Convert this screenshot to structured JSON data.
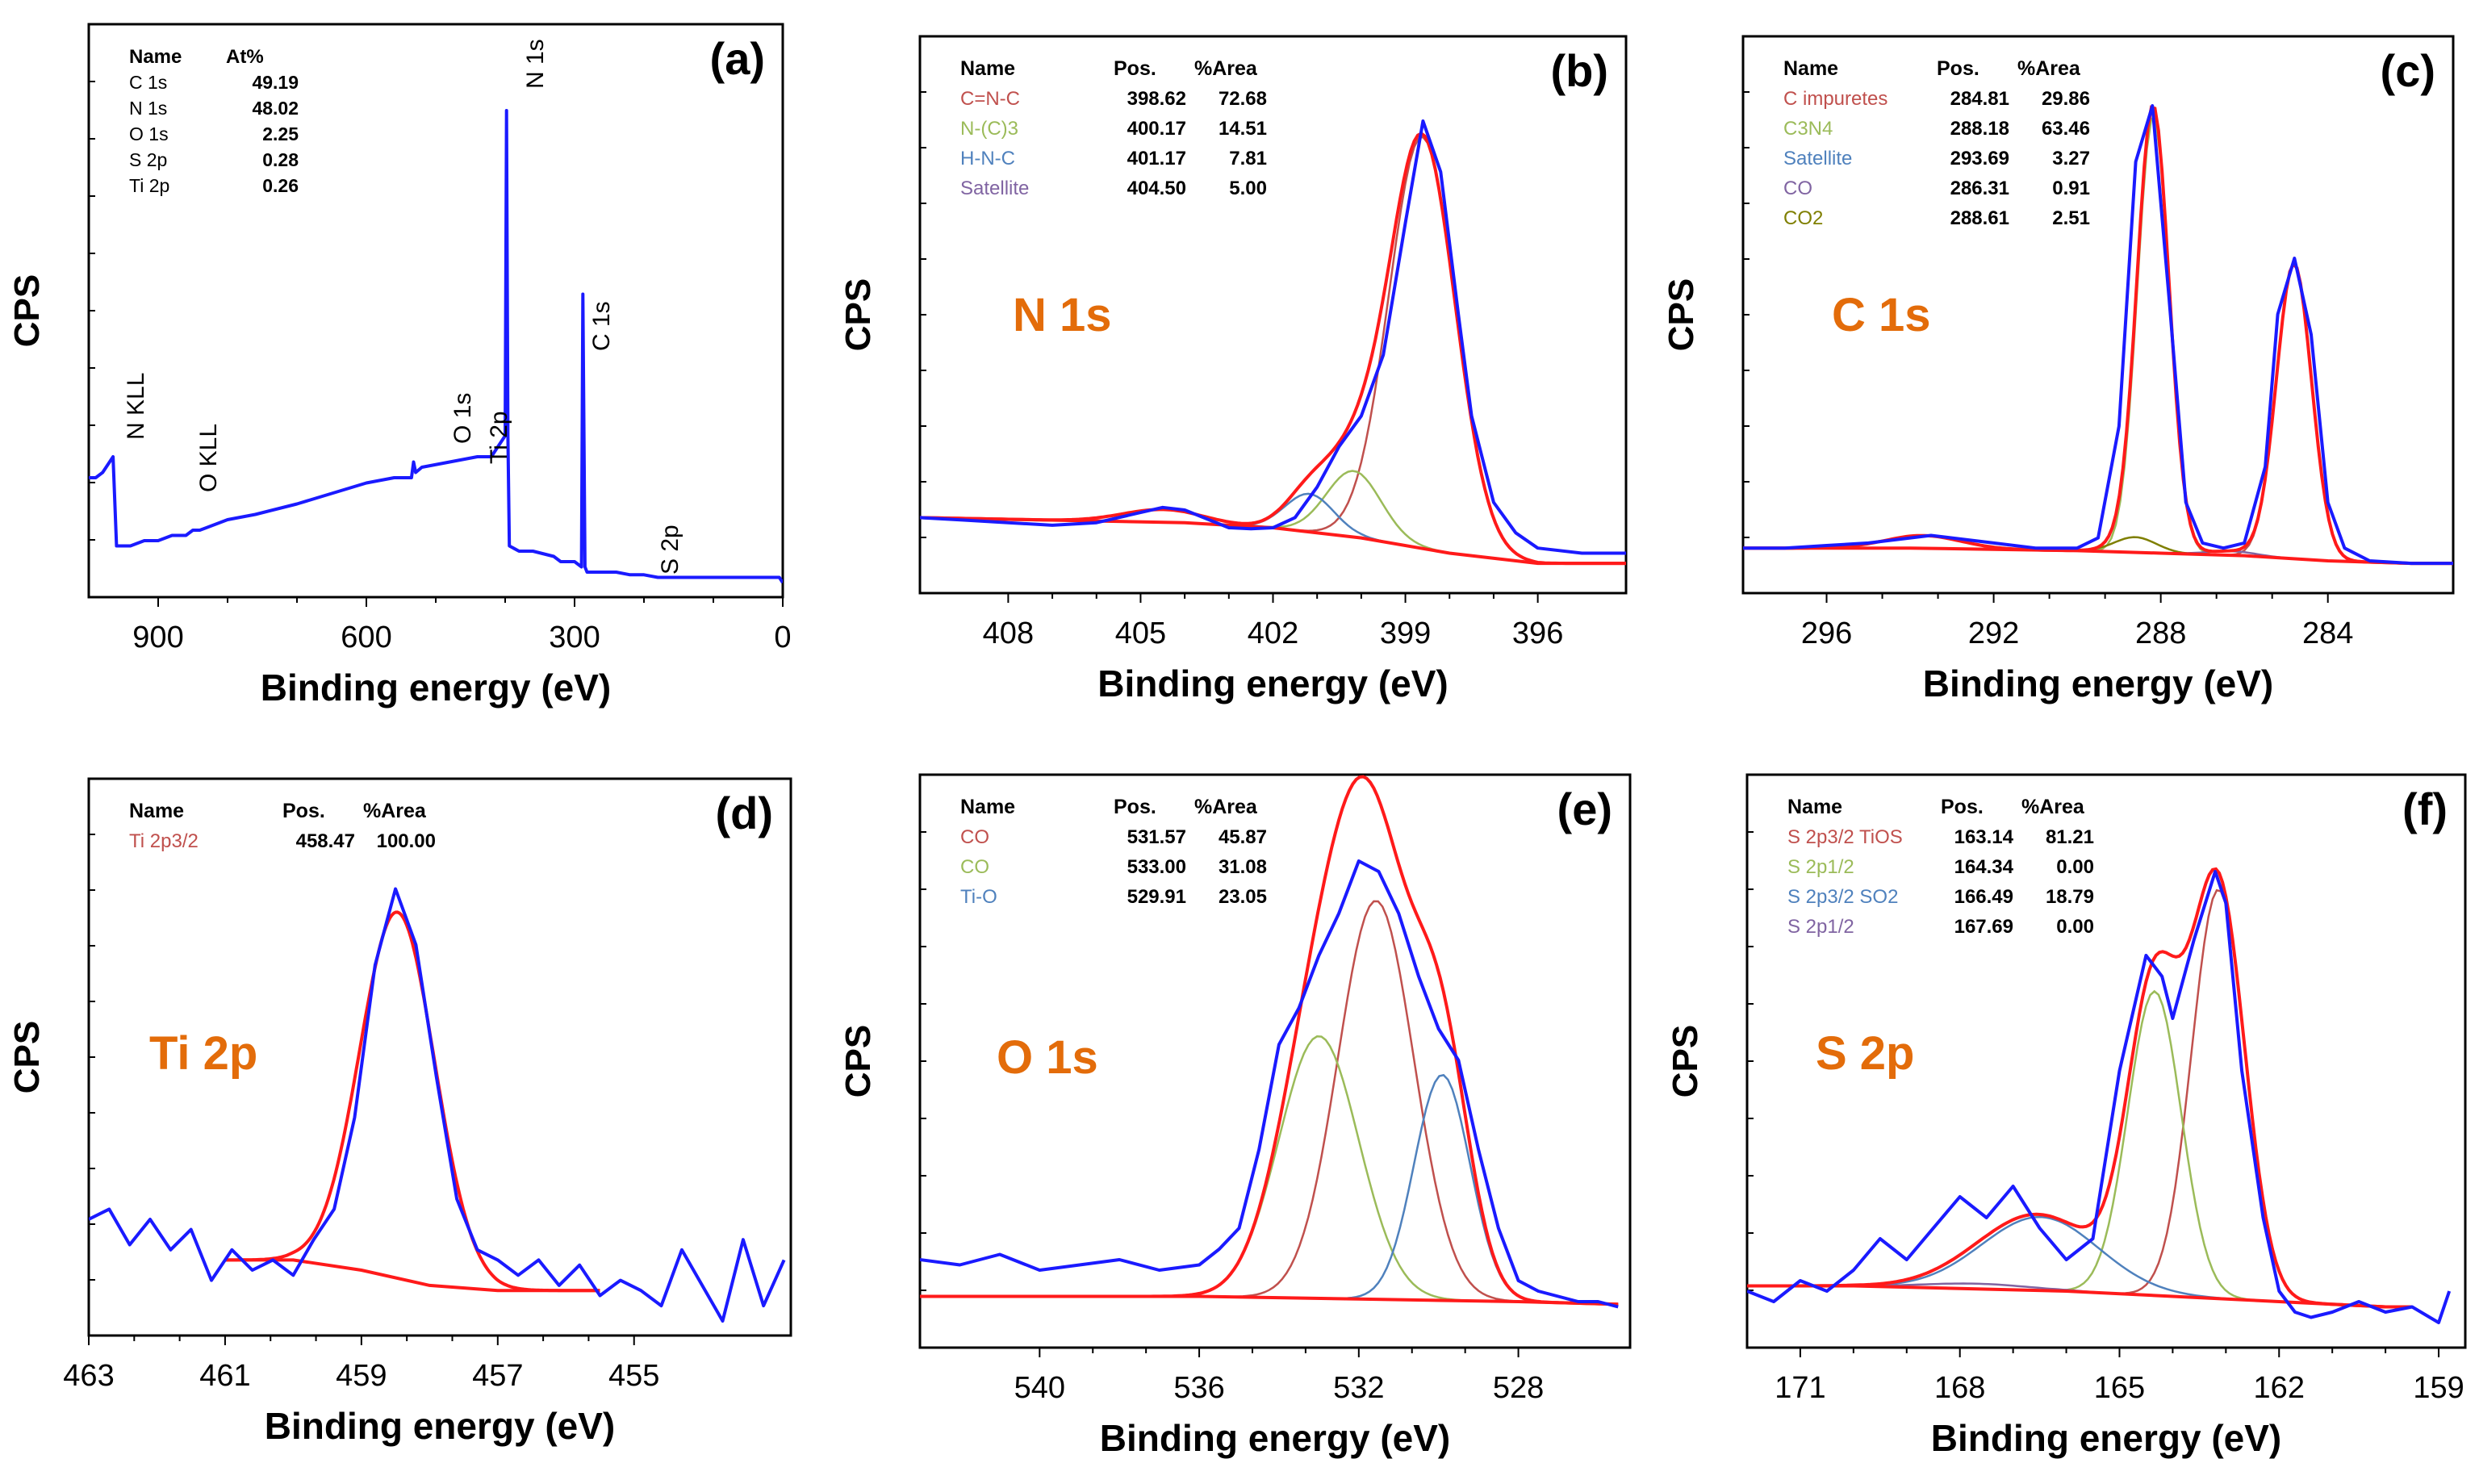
{
  "figure": {
    "y_label": "CPS",
    "x_label": "Binding energy (eV)"
  },
  "chart_data": [
    {
      "id": "a",
      "type": "line",
      "title": "",
      "panel_label": "(a)",
      "xlabel": "Binding energy (eV)",
      "ylabel": "CPS",
      "xlim": [
        1000,
        0
      ],
      "ylim": [
        0,
        100
      ],
      "xticks": [
        900,
        600,
        300,
        0
      ],
      "colors": {
        "spectrum": "#1a1aff"
      },
      "spectrum": {
        "x": [
          1000,
          990,
          980,
          975,
          970,
          965,
          960,
          940,
          920,
          900,
          880,
          860,
          850,
          840,
          800,
          760,
          700,
          650,
          600,
          560,
          535,
          532,
          529,
          520,
          480,
          440,
          420,
          400,
          398,
          396,
          394,
          380,
          360,
          330,
          320,
          300,
          290,
          288,
          285,
          282,
          280,
          260,
          240,
          220,
          200,
          180,
          150,
          120,
          90,
          60,
          40,
          20,
          10,
          5,
          0
        ],
        "y": [
          20,
          20,
          21,
          22,
          23,
          24,
          7,
          7,
          8,
          8,
          9,
          9,
          10,
          10,
          12,
          13,
          15,
          17,
          19,
          20,
          20,
          23,
          21,
          22,
          23,
          24,
          24,
          28,
          90,
          28,
          7,
          6,
          6,
          5,
          4,
          4,
          3,
          55,
          3,
          2,
          2,
          2,
          2,
          1.5,
          1.5,
          1,
          1,
          1,
          1,
          1,
          1,
          1,
          1,
          1,
          0
        ]
      },
      "peak_labels": [
        "N KLL",
        "O KLL",
        "O 1s",
        "Ti 2p",
        "N 1s",
        "C 1s",
        "S 2p"
      ],
      "table": {
        "headers": [
          "Name",
          "At%"
        ],
        "rows": [
          [
            "C 1s",
            "49.19"
          ],
          [
            "N 1s",
            "48.02"
          ],
          [
            "O 1s",
            "2.25"
          ],
          [
            "S 2p",
            "0.28"
          ],
          [
            "Ti 2p",
            "0.26"
          ]
        ]
      }
    },
    {
      "id": "b",
      "type": "line",
      "title": "N 1s",
      "panel_label": "(b)",
      "xlabel": "Binding energy (eV)",
      "ylabel": "CPS",
      "xlim": [
        410,
        394
      ],
      "ylim": [
        0,
        100
      ],
      "xticks": [
        408,
        405,
        402,
        399,
        396
      ],
      "colors": {
        "spectrum": "#1a1aff",
        "background": "#ff1a1a",
        "c1": "#c0504d",
        "c2": "#9bbb59",
        "c3": "#4f81bd",
        "c4": "#8064a2"
      },
      "spectrum": {
        "x": [
          410,
          409,
          408,
          407,
          406,
          405,
          404.5,
          404,
          403,
          402.5,
          402,
          401.5,
          401,
          400.5,
          400,
          399.5,
          399,
          398.6,
          398.2,
          397.8,
          397.5,
          397,
          396.5,
          396,
          395,
          394
        ],
        "y": [
          12,
          11.5,
          11,
          10.5,
          11,
          13,
          14,
          13.5,
          10,
          9.8,
          10,
          12,
          18,
          26,
          32,
          44,
          70,
          90,
          80,
          52,
          32,
          15,
          9,
          6,
          5,
          5
        ]
      },
      "baseline": {
        "x": [
          410,
          404,
          402,
          400,
          398,
          396,
          394
        ],
        "y": [
          12,
          11,
          10,
          8,
          5,
          3,
          3
        ]
      },
      "components": [
        {
          "name": "C=N-C",
          "center": 398.62,
          "height": 81,
          "sigma": 0.75
        },
        {
          "name": "N-(C)3",
          "center": 400.17,
          "height": 13,
          "sigma": 0.62
        },
        {
          "name": "H-N-C",
          "center": 401.17,
          "height": 7.5,
          "sigma": 0.55
        },
        {
          "name": "Satellite",
          "center": 404.5,
          "height": 2.5,
          "sigma": 0.9
        }
      ],
      "table": {
        "headers": [
          "Name",
          "Pos.",
          "%Area"
        ],
        "rows": [
          [
            "C=N-C",
            "398.62",
            "72.68"
          ],
          [
            "N-(C)3",
            "400.17",
            "14.51"
          ],
          [
            "H-N-C",
            "401.17",
            "7.81"
          ],
          [
            "Satellite",
            "404.50",
            "5.00"
          ]
        ]
      }
    },
    {
      "id": "c",
      "type": "line",
      "title": "C 1s",
      "panel_label": "(c)",
      "xlabel": "Binding energy (eV)",
      "ylabel": "CPS",
      "xlim": [
        298,
        281
      ],
      "ylim": [
        0,
        100
      ],
      "xticks": [
        296,
        292,
        288,
        284
      ],
      "colors": {
        "spectrum": "#1a1aff",
        "background": "#ff1a1a",
        "c1": "#c0504d",
        "c2": "#9bbb59",
        "c3": "#4f81bd",
        "c4": "#8064a2",
        "c5": "#7f7f00"
      },
      "spectrum": {
        "x": [
          298,
          297,
          296,
          295,
          294,
          293.5,
          293,
          292,
          291,
          290,
          289.5,
          289,
          288.6,
          288.2,
          287.8,
          287.4,
          287,
          286.5,
          286,
          285.5,
          285.2,
          284.8,
          284.4,
          284,
          283.6,
          283,
          282,
          281
        ],
        "y": [
          6,
          6,
          6.5,
          7,
          8,
          8.5,
          8,
          7,
          6,
          6,
          8,
          30,
          82,
          93,
          55,
          15,
          7,
          6,
          7,
          22,
          52,
          63,
          48,
          15,
          6,
          3.5,
          3,
          3
        ]
      },
      "baseline": {
        "x": [
          298,
          294,
          290,
          288,
          286,
          284,
          282,
          281
        ],
        "y": [
          6,
          6,
          5.5,
          5,
          4.5,
          3.5,
          3,
          3
        ]
      },
      "components": [
        {
          "name": "C impuretes",
          "center": 284.81,
          "height": 58,
          "sigma": 0.42
        },
        {
          "name": "C3N4",
          "center": 288.18,
          "height": 86,
          "sigma": 0.38
        },
        {
          "name": "Satellite",
          "center": 293.69,
          "height": 2.5,
          "sigma": 0.9
        },
        {
          "name": "CO",
          "center": 286.31,
          "height": 0.8,
          "sigma": 0.6
        },
        {
          "name": "CO2",
          "center": 288.61,
          "height": 3,
          "sigma": 0.5
        }
      ],
      "table": {
        "headers": [
          "Name",
          "Pos.",
          "%Area"
        ],
        "rows": [
          [
            "C impuretes",
            "284.81",
            "29.86"
          ],
          [
            "C3N4",
            "288.18",
            "63.46"
          ],
          [
            "Satellite",
            "293.69",
            "3.27"
          ],
          [
            "CO",
            "286.31",
            "0.91"
          ],
          [
            "CO2",
            "288.61",
            "2.51"
          ]
        ]
      }
    },
    {
      "id": "d",
      "type": "line",
      "title": "Ti 2p",
      "panel_label": "(d)",
      "xlabel": "Binding energy (eV)",
      "ylabel": "CPS",
      "xlim": [
        463,
        452.7
      ],
      "ylim": [
        0,
        100
      ],
      "xticks": [
        463,
        461,
        459,
        457,
        455
      ],
      "colors": {
        "spectrum": "#1a1aff",
        "background": "#ff1a1a",
        "c1": "#c0504d"
      },
      "spectrum": {
        "x": [
          463,
          462.7,
          462.4,
          462.1,
          461.8,
          461.5,
          461.2,
          460.9,
          460.6,
          460.3,
          460,
          459.7,
          459.4,
          459.1,
          458.8,
          458.5,
          458.2,
          457.9,
          457.6,
          457.3,
          457,
          456.7,
          456.4,
          456.1,
          455.8,
          455.5,
          455.2,
          454.9,
          454.6,
          454.3,
          454,
          453.7,
          453.4,
          453.1,
          452.8
        ],
        "y": [
          20,
          22,
          15,
          20,
          14,
          18,
          8,
          14,
          10,
          12,
          9,
          16,
          22,
          40,
          70,
          85,
          74,
          48,
          24,
          14,
          12,
          9,
          12,
          7,
          11,
          5,
          8,
          6,
          3,
          14,
          7,
          0,
          16,
          3,
          12
        ]
      },
      "baseline": {
        "x": [
          461,
          460,
          459,
          458,
          457,
          456,
          455.5
        ],
        "y": [
          12,
          12,
          10,
          7,
          6,
          6,
          6
        ]
      },
      "components": [
        {
          "name": "Ti 2p3/2",
          "center": 458.47,
          "height": 72,
          "sigma": 0.55
        }
      ],
      "table": {
        "headers": [
          "Name",
          "Pos.",
          "%Area"
        ],
        "rows": [
          [
            "Ti 2p3/2",
            "458.47",
            "100.00"
          ]
        ]
      }
    },
    {
      "id": "e",
      "type": "line",
      "title": "O 1s",
      "panel_label": "(e)",
      "xlabel": "Binding energy (eV)",
      "ylabel": "CPS",
      "xlim": [
        543,
        525.2
      ],
      "ylim": [
        0,
        100
      ],
      "xticks": [
        540,
        536,
        532,
        528
      ],
      "colors": {
        "spectrum": "#1a1aff",
        "background": "#ff1a1a",
        "c1": "#c0504d",
        "c2": "#9bbb59",
        "c3": "#4f81bd"
      },
      "spectrum": {
        "x": [
          543,
          542,
          541,
          540,
          539,
          538,
          537,
          536,
          535.5,
          535,
          534.5,
          534,
          533.5,
          533,
          532.5,
          532,
          531.5,
          531,
          530.5,
          530,
          529.5,
          529,
          528.5,
          528,
          527.5,
          527,
          526.5,
          526,
          525.5
        ],
        "y": [
          14,
          13,
          15,
          12,
          13,
          14,
          12,
          13,
          16,
          20,
          35,
          55,
          62,
          72,
          80,
          90,
          88,
          80,
          68,
          58,
          52,
          35,
          20,
          10,
          8,
          7,
          6,
          6,
          5
        ]
      },
      "baseline": {
        "x": [
          543,
          536,
          532,
          528,
          525.5
        ],
        "y": [
          7,
          7,
          6.5,
          6,
          5.5
        ]
      },
      "components": [
        {
          "name": "CO (531.57)",
          "center": 531.57,
          "height": 76,
          "sigma": 0.95
        },
        {
          "name": "CO (533.00)",
          "center": 533.0,
          "height": 50,
          "sigma": 1.0
        },
        {
          "name": "Ti-O",
          "center": 529.91,
          "height": 43,
          "sigma": 0.7
        }
      ],
      "table": {
        "headers": [
          "Name",
          "Pos.",
          "%Area"
        ],
        "rows": [
          [
            "CO",
            "531.57",
            "45.87"
          ],
          [
            "CO",
            "533.00",
            "31.08"
          ],
          [
            "Ti-O",
            "529.91",
            "23.05"
          ]
        ]
      }
    },
    {
      "id": "f",
      "type": "line",
      "title": "S 2p",
      "panel_label": "(f)",
      "xlabel": "Binding energy (eV)",
      "ylabel": "CPS",
      "xlim": [
        172,
        158.5
      ],
      "ylim": [
        0,
        100
      ],
      "xticks": [
        171,
        168,
        165,
        162,
        159
      ],
      "colors": {
        "spectrum": "#1a1aff",
        "background": "#ff1a1a",
        "c1": "#c0504d",
        "c2": "#9bbb59",
        "c3": "#4f81bd",
        "c4": "#8064a2"
      },
      "spectrum": {
        "x": [
          172,
          171.5,
          171,
          170.5,
          170,
          169.5,
          169,
          168.5,
          168,
          167.5,
          167,
          166.5,
          166,
          165.5,
          165,
          164.5,
          164.2,
          164,
          163.6,
          163.2,
          163,
          162.7,
          162.3,
          162,
          161.7,
          161.4,
          161,
          160.5,
          160,
          159.5,
          159,
          158.8
        ],
        "y": [
          8,
          6,
          10,
          8,
          12,
          18,
          14,
          20,
          26,
          22,
          28,
          20,
          14,
          18,
          50,
          72,
          68,
          60,
          75,
          88,
          82,
          50,
          22,
          8,
          4,
          3,
          4,
          6,
          4,
          5,
          2,
          8
        ]
      },
      "baseline": {
        "x": [
          172,
          170,
          168,
          166,
          164,
          162,
          160,
          159.5
        ],
        "y": [
          9,
          9,
          8.5,
          8,
          7,
          6,
          5,
          5
        ]
      },
      "components": [
        {
          "name": "S 2p3/2 TiOS",
          "center": 163.14,
          "height": 78,
          "sigma": 0.5
        },
        {
          "name": "S 2p1/2",
          "center": 164.34,
          "height": 58,
          "sigma": 0.5
        },
        {
          "name": "S 2p3/2 SO2",
          "center": 166.49,
          "height": 14,
          "sigma": 1.1
        },
        {
          "name": "S 2p1/2",
          "center": 167.69,
          "height": 1,
          "sigma": 1.0
        }
      ],
      "table": {
        "headers": [
          "Name",
          "Pos.",
          "%Area"
        ],
        "rows": [
          [
            "S 2p3/2  TiOS",
            "163.14",
            "81.21"
          ],
          [
            "S 2p1/2",
            "164.34",
            "0.00"
          ],
          [
            "S 2p3/2  SO2",
            "166.49",
            "18.79"
          ],
          [
            "S 2p1/2",
            "167.69",
            "0.00"
          ]
        ]
      }
    }
  ]
}
